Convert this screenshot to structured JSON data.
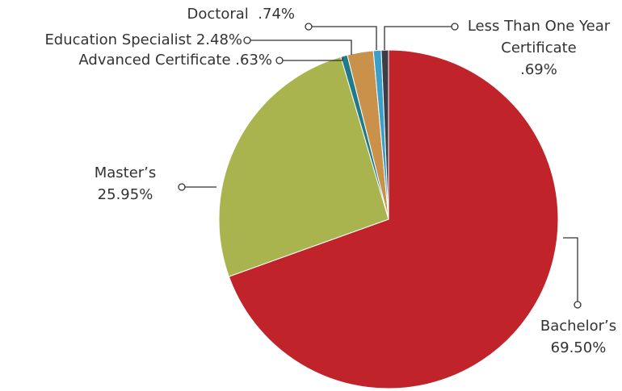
{
  "chart_data": {
    "type": "pie",
    "categories": [
      "Bachelor’s",
      "Master’s",
      "Advanced Certificate",
      "Education Specialist",
      "Doctoral",
      "Less Than One Year Certificate"
    ],
    "values": [
      69.5,
      25.95,
      0.63,
      2.48,
      0.74,
      0.69
    ],
    "value_labels": [
      "69.50%",
      "25.95%",
      ".63%",
      "2.48%",
      ".74%",
      ".69%"
    ],
    "colors": [
      "#c1232b",
      "#a9b44e",
      "#1f7b8a",
      "#c9914a",
      "#3a9fc9",
      "#3d3d45"
    ]
  }
}
